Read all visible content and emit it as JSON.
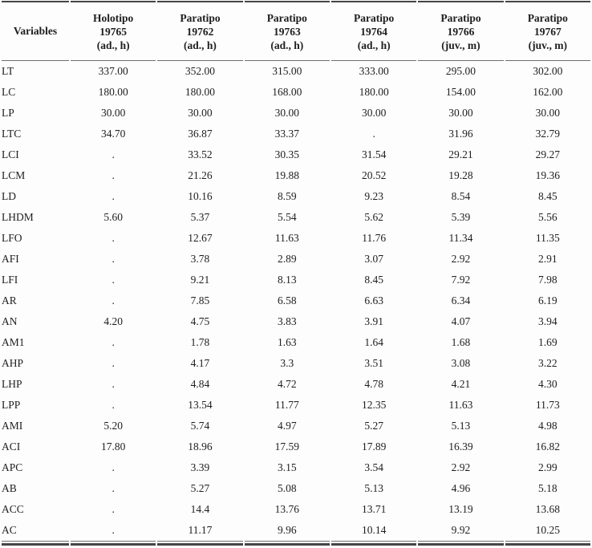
{
  "table": {
    "variables_header": "Variables",
    "columns": [
      {
        "type": "Holotipo",
        "number": "19765",
        "class": "(ad., h)"
      },
      {
        "type": "Paratipo",
        "number": "19762",
        "class": "(ad., h)"
      },
      {
        "type": "Paratipo",
        "number": "19763",
        "class": "(ad., h)"
      },
      {
        "type": "Paratipo",
        "number": "19764",
        "class": "(ad., h)"
      },
      {
        "type": "Paratipo",
        "number": "19766",
        "class": "(juv., m)"
      },
      {
        "type": "Paratipo",
        "number": "19767",
        "class": "(juv., m)"
      }
    ],
    "rows": [
      {
        "variable": "LT",
        "values": [
          "337.00",
          "352.00",
          "315.00",
          "333.00",
          "295.00",
          "302.00"
        ]
      },
      {
        "variable": "LC",
        "values": [
          "180.00",
          "180.00",
          "168.00",
          "180.00",
          "154.00",
          "162.00"
        ]
      },
      {
        "variable": "LP",
        "values": [
          "30.00",
          "30.00",
          "30.00",
          "30.00",
          "30.00",
          "30.00"
        ]
      },
      {
        "variable": "LTC",
        "values": [
          "34.70",
          "36.87",
          "33.37",
          ".",
          "31.96",
          "32.79"
        ]
      },
      {
        "variable": "LCI",
        "values": [
          ".",
          "33.52",
          "30.35",
          "31.54",
          "29.21",
          "29.27"
        ]
      },
      {
        "variable": "LCM",
        "values": [
          ".",
          "21.26",
          "19.88",
          "20.52",
          "19.28",
          "19.36"
        ]
      },
      {
        "variable": "LD",
        "values": [
          ".",
          "10.16",
          "8.59",
          "9.23",
          "8.54",
          "8.45"
        ]
      },
      {
        "variable": "LHDM",
        "values": [
          "5.60",
          "5.37",
          "5.54",
          "5.62",
          "5.39",
          "5.56"
        ]
      },
      {
        "variable": "LFO",
        "values": [
          ".",
          "12.67",
          "11.63",
          "11.76",
          "11.34",
          "11.35"
        ]
      },
      {
        "variable": "AFI",
        "values": [
          ".",
          "3.78",
          "2.89",
          "3.07",
          "2.92",
          "2.91"
        ]
      },
      {
        "variable": "LFI",
        "values": [
          ".",
          "9.21",
          "8.13",
          "8.45",
          "7.92",
          "7.98"
        ]
      },
      {
        "variable": "AR",
        "values": [
          ".",
          "7.85",
          "6.58",
          "6.63",
          "6.34",
          "6.19"
        ]
      },
      {
        "variable": "AN",
        "values": [
          "4.20",
          "4.75",
          "3.83",
          "3.91",
          "4.07",
          "3.94"
        ]
      },
      {
        "variable": "AM1",
        "values": [
          ".",
          "1.78",
          "1.63",
          "1.64",
          "1.68",
          "1.69"
        ]
      },
      {
        "variable": "AHP",
        "values": [
          ".",
          "4.17",
          "3.3",
          "3.51",
          "3.08",
          "3.22"
        ]
      },
      {
        "variable": "LHP",
        "values": [
          ".",
          "4.84",
          "4.72",
          "4.78",
          "4.21",
          "4.30"
        ]
      },
      {
        "variable": "LPP",
        "values": [
          ".",
          "13.54",
          "11.77",
          "12.35",
          "11.63",
          "11.73"
        ]
      },
      {
        "variable": "AMI",
        "values": [
          "5.20",
          "5.74",
          "4.97",
          "5.27",
          "5.13",
          "4.98"
        ]
      },
      {
        "variable": "ACI",
        "values": [
          "17.80",
          "18.96",
          "17.59",
          "17.89",
          "16.39",
          "16.82"
        ]
      },
      {
        "variable": "APC",
        "values": [
          ".",
          "3.39",
          "3.15",
          "3.54",
          "2.92",
          "2.99"
        ]
      },
      {
        "variable": "AB",
        "values": [
          ".",
          "5.27",
          "5.08",
          "5.13",
          "4.96",
          "5.18"
        ]
      },
      {
        "variable": "ACC",
        "values": [
          ".",
          "14.4",
          "13.76",
          "13.71",
          "13.19",
          "13.68"
        ]
      },
      {
        "variable": "AC",
        "values": [
          ".",
          "11.17",
          "9.96",
          "10.14",
          "9.92",
          "10.25"
        ]
      }
    ]
  }
}
